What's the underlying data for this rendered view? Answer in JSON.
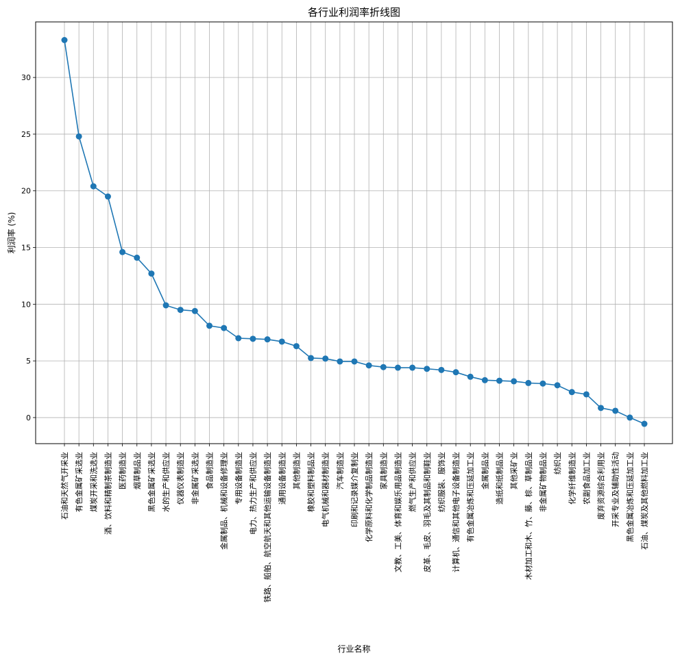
{
  "chart_data": {
    "type": "line",
    "title": "各行业利润率折线图",
    "xlabel": "行业名称",
    "ylabel": "利润率 (%)",
    "ylim": [
      -2.3,
      34.9
    ],
    "yticks": [
      0,
      5,
      10,
      15,
      20,
      25,
      30
    ],
    "grid": true,
    "color": "#1f77b4",
    "marker": "circle",
    "categories": [
      "石油和天然气开采业",
      "有色金属矿采选业",
      "煤炭开采和洗选业",
      "酒、饮料和精制茶制造业",
      "医药制造业",
      "烟草制品业",
      "黑色金属矿采选业",
      "水的生产和供应业",
      "仪器仪表制造业",
      "非金属矿采选业",
      "食品制造业",
      "金属制品、机械和设备修理业",
      "专用设备制造业",
      "电力、热力生产和供应业",
      "铁路、船舶、航空航天和其他运输设备制造业",
      "通用设备制造业",
      "其他制造业",
      "橡胶和塑料制品业",
      "电气机械和器材制造业",
      "汽车制造业",
      "印刷和记录媒介复制业",
      "化学原料和化学制品制造业",
      "家具制造业",
      "文教、工美、体育和娱乐用品制造业",
      "燃气生产和供应业",
      "皮革、毛皮、羽毛及其制品和制鞋业",
      "纺织服装、服饰业",
      "计算机、通信和其他电子设备制造业",
      "有色金属冶炼和压延加工业",
      "金属制品业",
      "造纸和纸制品业",
      "其他采矿业",
      "木材加工和木、竹、藤、棕、草制品业",
      "非金属矿物制品业",
      "纺织业",
      "化学纤维制造业",
      "农副食品加工业",
      "废弃资源综合利用业",
      "开采专业及辅助性活动",
      "黑色金属冶炼和压延加工业",
      "石油、煤炭及其他燃料加工业"
    ],
    "values": [
      33.3,
      24.8,
      20.4,
      19.5,
      14.6,
      14.1,
      12.7,
      9.9,
      9.5,
      9.4,
      8.1,
      7.9,
      7.0,
      6.95,
      6.9,
      6.7,
      6.3,
      5.25,
      5.2,
      4.95,
      4.95,
      4.6,
      4.45,
      4.4,
      4.4,
      4.3,
      4.2,
      4.0,
      3.6,
      3.3,
      3.25,
      3.2,
      3.05,
      3.0,
      2.85,
      2.25,
      2.05,
      0.85,
      0.6,
      0.0,
      -0.55
    ]
  }
}
